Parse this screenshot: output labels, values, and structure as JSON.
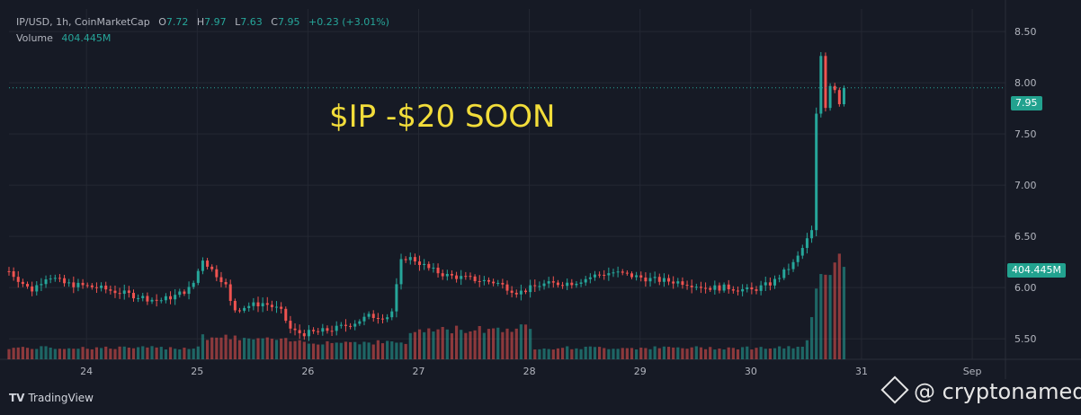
{
  "header": {
    "symbol": "IP/USD, 1h, CoinMarketCap",
    "open_label": "O",
    "open": "7.72",
    "high_label": "H",
    "high": "7.97",
    "low_label": "L",
    "low": "7.63",
    "close_label": "C",
    "close": "7.95",
    "change": "+0.23 (+3.01%)",
    "volume_label": "Volume",
    "volume": "404.445M"
  },
  "annotation": "$IP -$20 SOON",
  "price_badge": "7.95",
  "volume_badge": "404.445M",
  "footer": {
    "logo": "TradingView"
  },
  "watermark": "@ cryptonamed",
  "colors": {
    "up": "#26a69a",
    "down": "#ef5350",
    "annotation": "#f2dd3a",
    "background": "#161a25"
  },
  "chart_data": {
    "type": "candlestick",
    "interval": "1h",
    "y_ticks": [
      "8.50",
      "8.00",
      "7.50",
      "7.00",
      "6.50",
      "6.00",
      "5.50"
    ],
    "y_tick_values": [
      8.5,
      8.0,
      7.5,
      7.0,
      6.5,
      6.0,
      5.5
    ],
    "ylim": [
      5.3,
      8.72
    ],
    "x_ticks": [
      "24",
      "25",
      "26",
      "27",
      "28",
      "29",
      "30",
      "31",
      "Sep"
    ],
    "x_tick_positions": [
      23.9,
      24.9,
      25.9,
      26.9,
      27.9,
      28.9,
      29.9,
      30.9,
      31.9
    ],
    "xlim": [
      23.2,
      32.2
    ],
    "last_price": 7.95,
    "anchors": [
      [
        23.2,
        6.16
      ],
      [
        23.4,
        5.97
      ],
      [
        23.55,
        6.12
      ],
      [
        23.7,
        6.04
      ],
      [
        24.0,
        6.0
      ],
      [
        24.3,
        5.93
      ],
      [
        24.55,
        5.87
      ],
      [
        24.7,
        5.92
      ],
      [
        24.85,
        6.0
      ],
      [
        24.95,
        6.28
      ],
      [
        25.05,
        6.15
      ],
      [
        25.15,
        6.05
      ],
      [
        25.22,
        5.78
      ],
      [
        25.35,
        5.82
      ],
      [
        25.5,
        5.85
      ],
      [
        25.65,
        5.78
      ],
      [
        25.75,
        5.58
      ],
      [
        25.85,
        5.55
      ],
      [
        26.0,
        5.57
      ],
      [
        26.15,
        5.6
      ],
      [
        26.3,
        5.65
      ],
      [
        26.45,
        5.72
      ],
      [
        26.55,
        5.72
      ],
      [
        26.65,
        5.72
      ],
      [
        26.75,
        6.3
      ],
      [
        26.85,
        6.28
      ],
      [
        27.0,
        6.18
      ],
      [
        27.15,
        6.12
      ],
      [
        27.4,
        6.08
      ],
      [
        27.6,
        6.05
      ],
      [
        27.8,
        5.95
      ],
      [
        28.0,
        6.03
      ],
      [
        28.3,
        6.05
      ],
      [
        28.5,
        6.12
      ],
      [
        28.65,
        6.15
      ],
      [
        28.8,
        6.12
      ],
      [
        29.0,
        6.08
      ],
      [
        29.3,
        6.05
      ],
      [
        29.5,
        6.0
      ],
      [
        29.7,
        6.0
      ],
      [
        29.9,
        5.97
      ],
      [
        30.1,
        6.05
      ],
      [
        30.3,
        6.25
      ],
      [
        30.45,
        6.55
      ],
      [
        30.52,
        8.45
      ],
      [
        30.57,
        7.75
      ],
      [
        30.63,
        8.05
      ],
      [
        30.7,
        7.8
      ],
      [
        30.75,
        7.95
      ]
    ],
    "volume_levels": [
      [
        23.2,
        0.08
      ],
      [
        24.9,
        0.08
      ],
      [
        24.95,
        0.16
      ],
      [
        25.95,
        0.12
      ],
      [
        26.8,
        0.12
      ],
      [
        26.85,
        0.2
      ],
      [
        27.9,
        0.22
      ],
      [
        27.95,
        0.08
      ],
      [
        30.4,
        0.08
      ],
      [
        30.5,
        0.6
      ],
      [
        30.75,
        0.72
      ]
    ],
    "volume_scale": "relative"
  }
}
